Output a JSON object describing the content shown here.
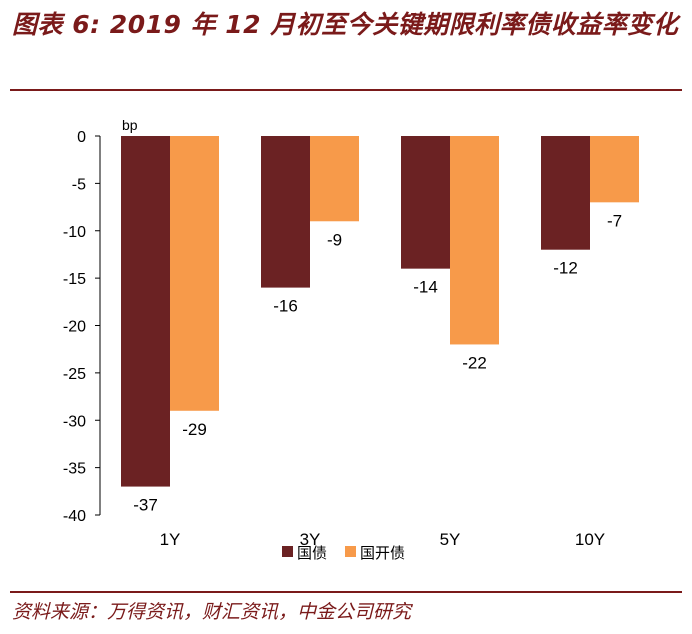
{
  "title": "图表 6: 2019 年 12 月初至今关键期限利率债收益率变化",
  "source": "资料来源：万得资讯，财汇资讯，中金公司研究",
  "chart_data": {
    "type": "bar",
    "unit_label": "bp",
    "categories": [
      "1Y",
      "3Y",
      "5Y",
      "10Y"
    ],
    "series": [
      {
        "name": "国债",
        "values": [
          -37,
          -16,
          -14,
          -12
        ],
        "color": "#6b2223"
      },
      {
        "name": "国开债",
        "values": [
          -29,
          -9,
          -22,
          -7
        ],
        "color": "#f79a4a"
      }
    ],
    "ylim": [
      -40,
      0
    ],
    "yticks": [
      0,
      -5,
      -10,
      -15,
      -20,
      -25,
      -30,
      -35,
      -40
    ],
    "legend_position": "bottom",
    "grid": false
  }
}
